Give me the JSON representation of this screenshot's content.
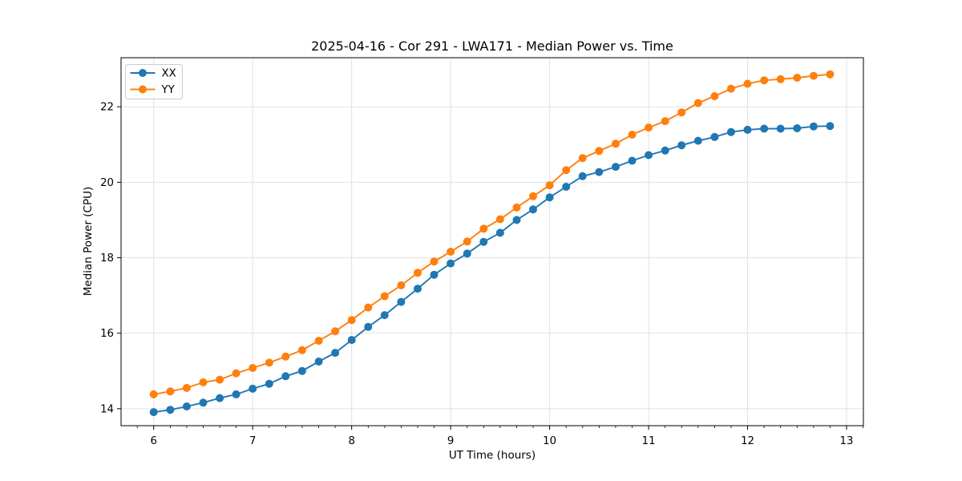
{
  "chart_data": {
    "type": "line",
    "title": "2025-04-16 - Cor 291 - LWA171 - Median Power vs. Time",
    "xlabel": "UT Time (hours)",
    "ylabel": "Median Power (CPU)",
    "xlim": [
      5.67,
      13.17
    ],
    "ylim": [
      13.55,
      23.3
    ],
    "xticks": [
      6,
      7,
      8,
      9,
      10,
      11,
      12,
      13
    ],
    "yticks": [
      14,
      16,
      18,
      20,
      22
    ],
    "x_minor_step": 0.16667,
    "grid": true,
    "legend_position": "upper-left",
    "grid_color": "#e1e1e1",
    "x": [
      6.0,
      6.167,
      6.333,
      6.5,
      6.667,
      6.833,
      7.0,
      7.167,
      7.333,
      7.5,
      7.667,
      7.833,
      8.0,
      8.167,
      8.333,
      8.5,
      8.667,
      8.833,
      9.0,
      9.167,
      9.333,
      9.5,
      9.667,
      9.833,
      10.0,
      10.167,
      10.333,
      10.5,
      10.667,
      10.833,
      11.0,
      11.167,
      11.333,
      11.5,
      11.667,
      11.833,
      12.0,
      12.167,
      12.333,
      12.5,
      12.667,
      12.833
    ],
    "series": [
      {
        "name": "XX",
        "color": "#1f77b4",
        "values": [
          13.91,
          13.97,
          14.06,
          14.16,
          14.28,
          14.38,
          14.53,
          14.66,
          14.86,
          15.0,
          15.25,
          15.48,
          15.82,
          16.17,
          16.48,
          16.83,
          17.18,
          17.55,
          17.85,
          18.11,
          18.42,
          18.66,
          19.0,
          19.28,
          19.6,
          19.88,
          20.16,
          20.27,
          20.41,
          20.57,
          20.72,
          20.84,
          20.98,
          21.1,
          21.2,
          21.33,
          21.39,
          21.42,
          21.42,
          21.43,
          21.48,
          21.49
        ]
      },
      {
        "name": "YY",
        "color": "#ff7f0e",
        "values": [
          14.38,
          14.46,
          14.55,
          14.7,
          14.77,
          14.94,
          15.08,
          15.22,
          15.38,
          15.55,
          15.8,
          16.05,
          16.35,
          16.68,
          16.98,
          17.27,
          17.6,
          17.9,
          18.16,
          18.43,
          18.77,
          19.02,
          19.33,
          19.63,
          19.92,
          20.32,
          20.64,
          20.83,
          21.02,
          21.26,
          21.45,
          21.62,
          21.85,
          22.1,
          22.28,
          22.48,
          22.61,
          22.7,
          22.73,
          22.77,
          22.82,
          22.86
        ]
      }
    ]
  }
}
